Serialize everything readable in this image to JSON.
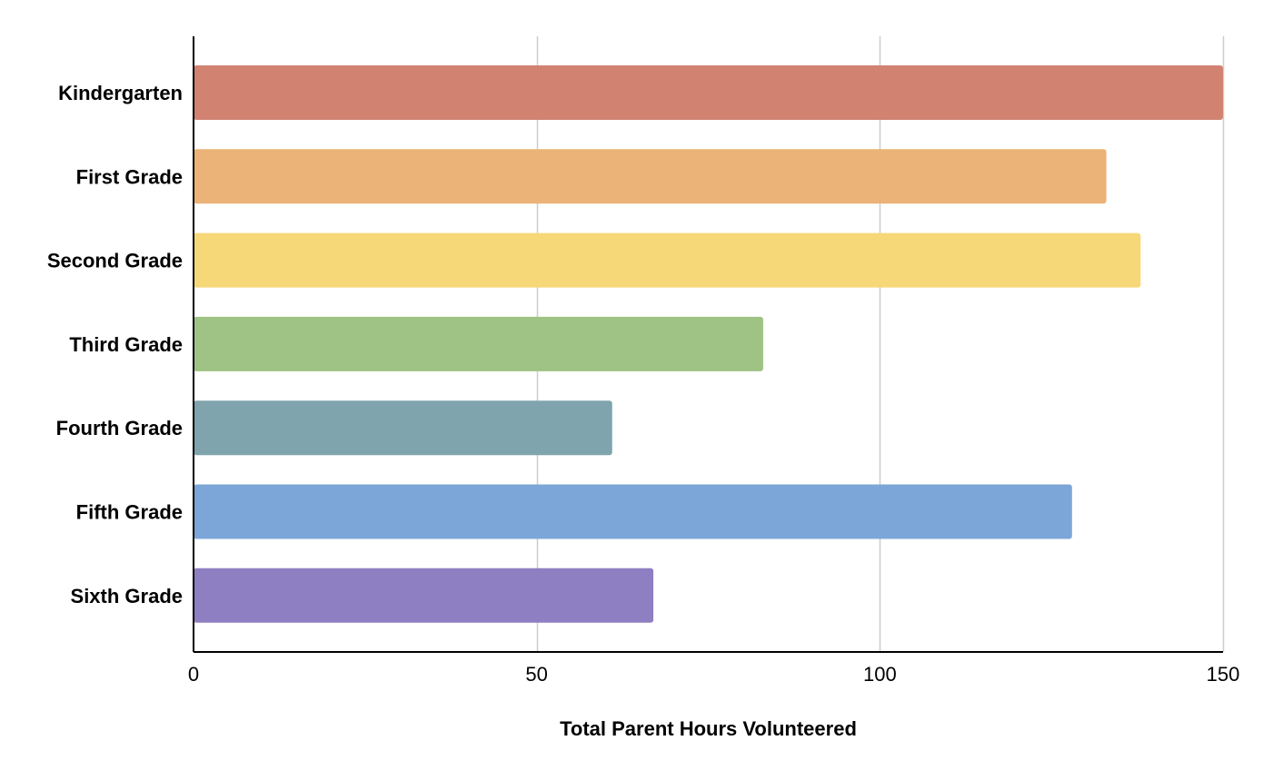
{
  "chart_data": {
    "type": "bar",
    "orientation": "horizontal",
    "title": "",
    "xlabel": "Total Parent Hours Volunteered",
    "ylabel": "",
    "xlim": [
      0,
      150
    ],
    "x_ticks": [
      0,
      50,
      100,
      150
    ],
    "grid": true,
    "legend": "none",
    "categories": [
      "Kindergarten",
      "First Grade",
      "Second Grade",
      "Third Grade",
      "Fourth Grade",
      "Fifth Grade",
      "Sixth Grade"
    ],
    "values": [
      150,
      133,
      138,
      83,
      61,
      128,
      67
    ],
    "colors": [
      "#d18271",
      "#ebb377",
      "#f6d878",
      "#9ec384",
      "#7fa4ad",
      "#7ca6d7",
      "#8d7fc1"
    ]
  },
  "colors": {
    "gridline": "#cccccc",
    "axis": "#000000",
    "background": "#ffffff"
  }
}
